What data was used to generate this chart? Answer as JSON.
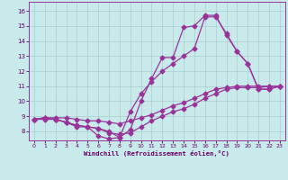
{
  "bg_color": "#c8eaea",
  "line_color": "#993399",
  "marker": "D",
  "markersize": 2.5,
  "linewidth": 0.9,
  "xlabel": "Windchill (Refroidissement éolien,°C)",
  "xlabel_color": "#660066",
  "xtick_color": "#660066",
  "ytick_color": "#660066",
  "grid_color": "#aacccc",
  "xlim": [
    -0.5,
    23.5
  ],
  "ylim": [
    7.4,
    16.6
  ],
  "xticks": [
    0,
    1,
    2,
    3,
    4,
    5,
    6,
    7,
    8,
    9,
    10,
    11,
    12,
    13,
    14,
    15,
    16,
    17,
    18,
    19,
    20,
    21,
    22,
    23
  ],
  "yticks": [
    8,
    9,
    10,
    11,
    12,
    13,
    14,
    15,
    16
  ],
  "lines": [
    {
      "x": [
        0,
        1,
        2,
        3,
        4,
        5,
        6,
        7,
        8,
        9,
        10,
        11,
        12,
        13,
        14,
        15,
        16,
        17,
        18,
        19,
        20,
        21,
        22,
        23
      ],
      "y": [
        8.8,
        8.9,
        8.8,
        8.6,
        8.3,
        8.3,
        7.7,
        7.5,
        7.6,
        8.1,
        10.0,
        11.5,
        12.9,
        12.9,
        14.9,
        15.0,
        15.7,
        15.7,
        14.4,
        13.3,
        12.5,
        10.8,
        10.8,
        11.0
      ]
    },
    {
      "x": [
        0,
        1,
        2,
        3,
        4,
        5,
        6,
        7,
        8,
        9,
        10,
        11,
        12,
        13,
        14,
        15,
        16,
        17,
        18,
        19,
        20,
        21,
        22,
        23
      ],
      "y": [
        8.8,
        8.9,
        8.8,
        8.6,
        8.4,
        8.3,
        8.2,
        8.0,
        7.6,
        9.3,
        10.5,
        11.3,
        12.0,
        12.5,
        13.0,
        13.5,
        15.6,
        15.6,
        14.5,
        13.3,
        12.5,
        10.8,
        10.8,
        11.0
      ]
    },
    {
      "x": [
        0,
        1,
        2,
        3,
        4,
        5,
        6,
        7,
        8,
        9,
        10,
        11,
        12,
        13,
        14,
        15,
        16,
        17,
        18,
        19,
        20,
        21,
        22,
        23
      ],
      "y": [
        8.8,
        8.8,
        8.8,
        8.6,
        8.4,
        8.3,
        8.2,
        7.9,
        7.8,
        7.9,
        8.3,
        8.7,
        9.0,
        9.3,
        9.5,
        9.8,
        10.2,
        10.5,
        10.8,
        10.9,
        10.9,
        10.9,
        11.0,
        11.0
      ]
    },
    {
      "x": [
        0,
        1,
        2,
        3,
        4,
        5,
        6,
        7,
        8,
        9,
        10,
        11,
        12,
        13,
        14,
        15,
        16,
        17,
        18,
        19,
        20,
        21,
        22,
        23
      ],
      "y": [
        8.8,
        8.9,
        8.9,
        8.9,
        8.8,
        8.7,
        8.7,
        8.6,
        8.5,
        8.7,
        8.9,
        9.1,
        9.4,
        9.7,
        9.9,
        10.2,
        10.5,
        10.8,
        10.9,
        11.0,
        11.0,
        11.0,
        11.0,
        11.0
      ]
    }
  ]
}
